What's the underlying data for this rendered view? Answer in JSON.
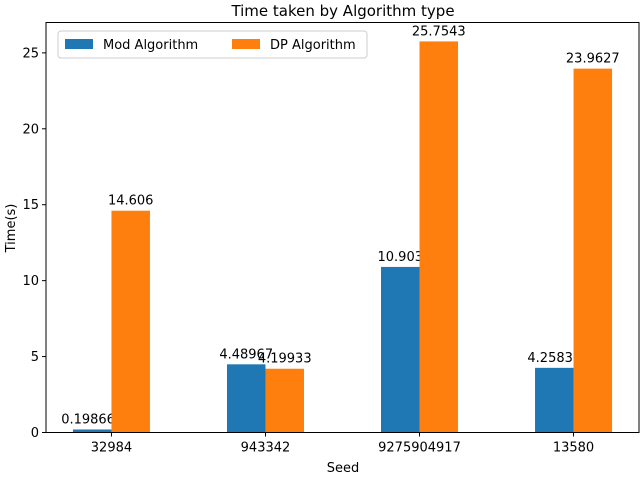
{
  "chart_data": {
    "type": "bar",
    "title": "Time taken by Algorithm type",
    "xlabel": "Seed",
    "ylabel": "Time(s)",
    "categories": [
      "32984",
      "943342",
      "9275904917",
      "13580"
    ],
    "series": [
      {
        "name": "Mod Algorithm",
        "color": "#1f77b4",
        "values": [
          0.198667,
          4.48967,
          10.903,
          4.25833
        ],
        "labels": [
          "0.198667",
          "4.48967",
          "10.903",
          "4.25833"
        ]
      },
      {
        "name": "DP Algorithm",
        "color": "#ff7f0e",
        "values": [
          14.606,
          4.19933,
          25.7543,
          23.9627
        ],
        "labels": [
          "14.606",
          "4.19933",
          "25.7543",
          "23.9627"
        ]
      }
    ],
    "ylim": [
      0,
      27
    ],
    "yticks": [
      0,
      5,
      10,
      15,
      20,
      25
    ],
    "grid": false,
    "legend": "top-left"
  }
}
